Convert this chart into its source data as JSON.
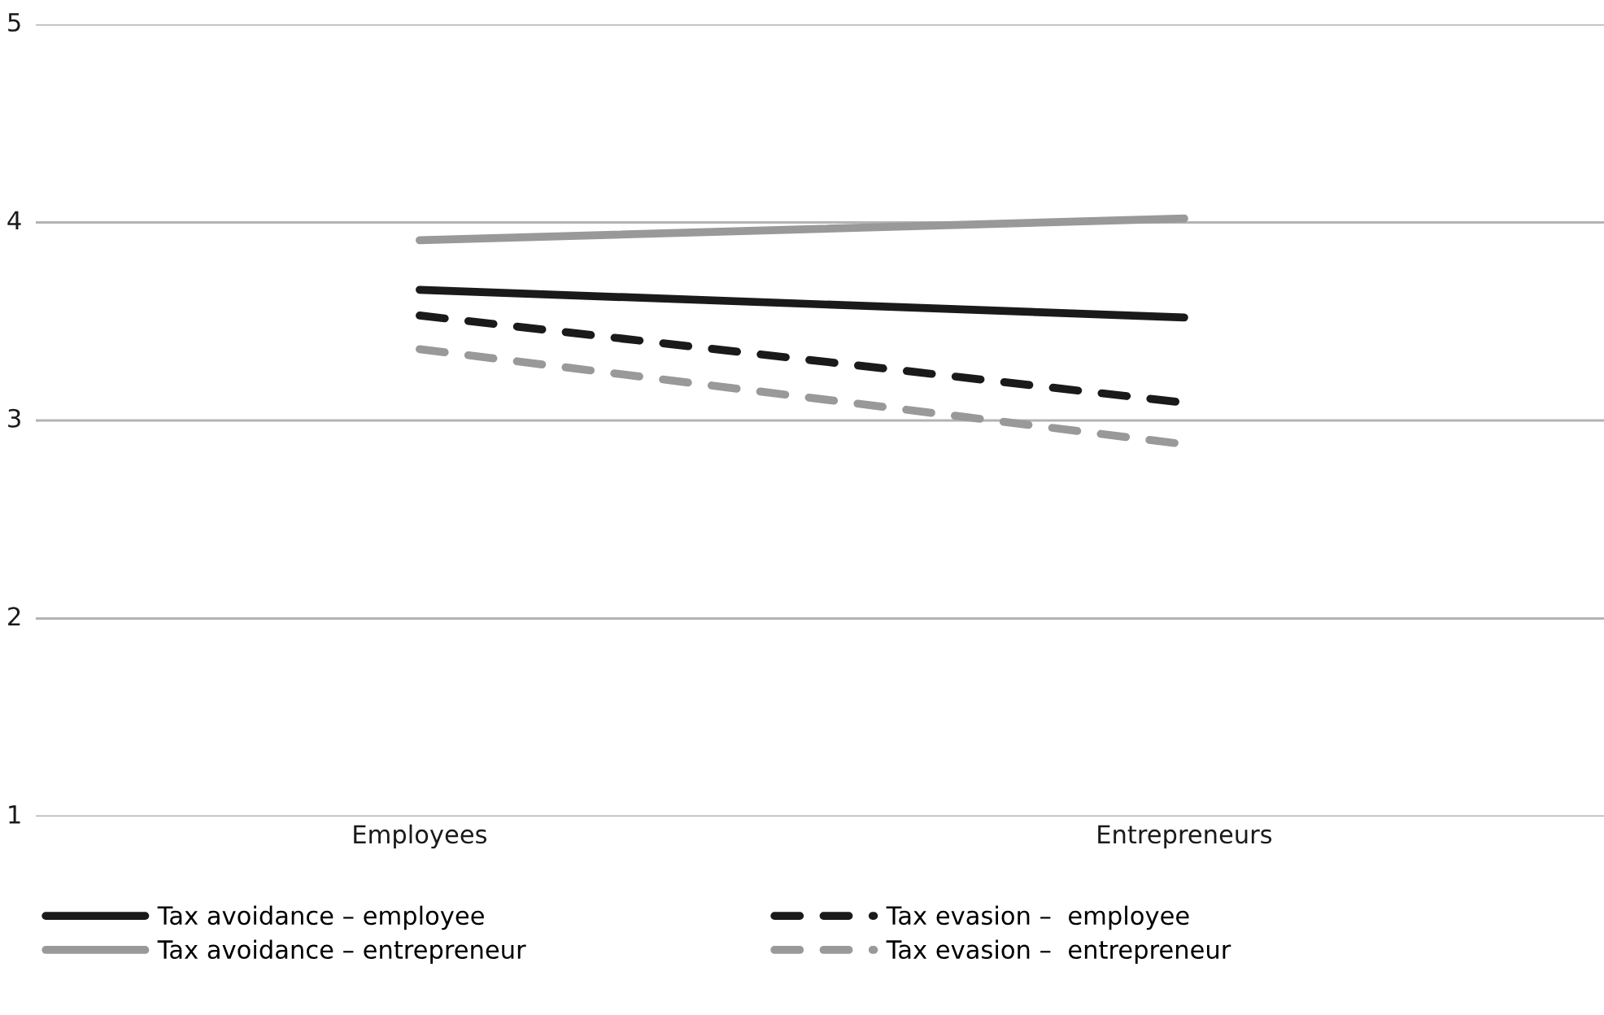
{
  "chart_data": {
    "type": "line",
    "categories": [
      "Employees",
      "Entrepreneurs"
    ],
    "series": [
      {
        "name": "Tax avoidance – employee",
        "color": "#1a1a1a",
        "line_style": "solid",
        "values": [
          3.66,
          3.52
        ]
      },
      {
        "name": "Tax avoidance – entrepreneur",
        "color": "#999999",
        "line_style": "solid",
        "values": [
          3.91,
          4.02
        ]
      },
      {
        "name": "Tax evasion –  employee",
        "color": "#1a1a1a",
        "line_style": "dashed",
        "values": [
          3.53,
          3.09
        ]
      },
      {
        "name": "Tax evasion –  entrepreneur",
        "color": "#999999",
        "line_style": "dashed",
        "values": [
          3.36,
          2.88
        ]
      }
    ],
    "ylim": [
      1,
      5
    ],
    "yticks": [
      1,
      2,
      3,
      4,
      5
    ],
    "grid": "y",
    "legend": "bottom",
    "marker": "none"
  }
}
